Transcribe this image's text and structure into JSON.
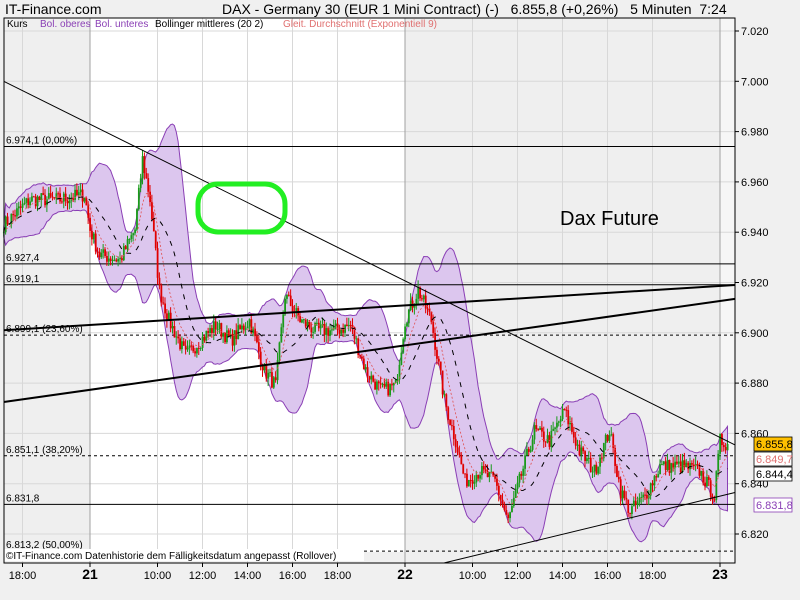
{
  "header": {
    "site": "IT-Finance.com",
    "instrument": "DAX - Germany 30 (EUR 1 Mini Contract) (-)",
    "last": "6.855,8 (+0,26%)",
    "interval": "5 Minuten",
    "time": "7:24"
  },
  "legend": {
    "kurs": "Kurs",
    "upper": "Bol. oberes",
    "lower": "Bol. unteres",
    "middle": "Bollinger mittleres (20 2)",
    "ema": "Gleit. Durchschnitt (Exponentiell 9)"
  },
  "footer": "©IT-Finance.com  Datenhistorie dem Fälligkeitsdatum angepasst (Rollover)",
  "annotation_text": "Dax Future",
  "colors": {
    "up": "#1a9a1a",
    "down": "#e00000",
    "band_fill": "#dcc6ee",
    "band_line": "#8a3fb5",
    "ema": "#e05050",
    "highlight": "#ffc000",
    "annotation": "#22ee22"
  },
  "chart_data": {
    "type": "candlestick",
    "interval": "5 Minuten",
    "ylim": [
      6810,
      7028
    ],
    "yticks": [
      "7.020",
      "7.000",
      "6.980",
      "6.960",
      "6.940",
      "6.920",
      "6.900",
      "6.880",
      "6.860",
      "6.840",
      "6.820"
    ],
    "ytick_values": [
      7020,
      7000,
      6980,
      6960,
      6940,
      6920,
      6900,
      6880,
      6860,
      6840,
      6820
    ],
    "xticks": [
      {
        "label": "18:00",
        "day": 20,
        "time": "18:00",
        "major": false
      },
      {
        "label": "21",
        "day": 21,
        "time": "07:00",
        "major": true
      },
      {
        "label": "10:00",
        "day": 21,
        "time": "10:00",
        "major": false
      },
      {
        "label": "12:00",
        "day": 21,
        "time": "12:00",
        "major": false
      },
      {
        "label": "14:00",
        "day": 21,
        "time": "14:00",
        "major": false
      },
      {
        "label": "16:00",
        "day": 21,
        "time": "16:00",
        "major": false
      },
      {
        "label": "18:00",
        "day": 21,
        "time": "18:00",
        "major": false
      },
      {
        "label": "22",
        "day": 22,
        "time": "07:00",
        "major": true
      },
      {
        "label": "10:00",
        "day": 22,
        "time": "10:00",
        "major": false
      },
      {
        "label": "12:00",
        "day": 22,
        "time": "12:00",
        "major": false
      },
      {
        "label": "14:00",
        "day": 22,
        "time": "14:00",
        "major": false
      },
      {
        "label": "16:00",
        "day": 22,
        "time": "16:00",
        "major": false
      },
      {
        "label": "18:00",
        "day": 22,
        "time": "18:00",
        "major": false
      },
      {
        "label": "23",
        "day": 23,
        "time": "07:00",
        "major": true
      }
    ],
    "close_path": [
      [
        20,
        "17:10",
        6943
      ],
      [
        20,
        "18:20",
        6953
      ],
      [
        20,
        "19:40",
        6953
      ],
      [
        20,
        "20:45",
        6955
      ],
      [
        21,
        "07:00",
        6941
      ],
      [
        21,
        "07:25",
        6931
      ],
      [
        21,
        "08:20",
        6929
      ],
      [
        21,
        "09:00",
        6941
      ],
      [
        21,
        "09:20",
        6969
      ],
      [
        21,
        "09:40",
        6953
      ],
      [
        21,
        "10:05",
        6917
      ],
      [
        21,
        "10:30",
        6905
      ],
      [
        21,
        "11:15",
        6891
      ],
      [
        21,
        "11:55",
        6897
      ],
      [
        21,
        "12:35",
        6903
      ],
      [
        21,
        "13:15",
        6897
      ],
      [
        21,
        "14:05",
        6905
      ],
      [
        21,
        "14:45",
        6885
      ],
      [
        21,
        "15:15",
        6879
      ],
      [
        21,
        "15:40",
        6915
      ],
      [
        21,
        "16:20",
        6905
      ],
      [
        21,
        "17:00",
        6901
      ],
      [
        21,
        "17:55",
        6901
      ],
      [
        21,
        "18:35",
        6903
      ],
      [
        21,
        "19:15",
        6885
      ],
      [
        21,
        "19:55",
        6877
      ],
      [
        21,
        "20:35",
        6879
      ],
      [
        22,
        "07:00",
        6905
      ],
      [
        22,
        "07:35",
        6917
      ],
      [
        22,
        "08:10",
        6905
      ],
      [
        22,
        "08:45",
        6873
      ],
      [
        22,
        "09:15",
        6857
      ],
      [
        22,
        "09:40",
        6841
      ],
      [
        22,
        "10:20",
        6845
      ],
      [
        22,
        "11:00",
        6841
      ],
      [
        22,
        "11:35",
        6825
      ],
      [
        22,
        "12:05",
        6841
      ],
      [
        22,
        "12:45",
        6861
      ],
      [
        22,
        "13:25",
        6857
      ],
      [
        22,
        "14:05",
        6869
      ],
      [
        22,
        "14:45",
        6853
      ],
      [
        22,
        "15:25",
        6845
      ],
      [
        22,
        "16:05",
        6861
      ],
      [
        22,
        "16:35",
        6837
      ],
      [
        22,
        "17:00",
        6829
      ],
      [
        22,
        "17:40",
        6835
      ],
      [
        22,
        "18:20",
        6847
      ],
      [
        22,
        "19:15",
        6847
      ],
      [
        22,
        "20:05",
        6845
      ],
      [
        22,
        "20:45",
        6835
      ],
      [
        23,
        "07:00",
        6857
      ],
      [
        23,
        "07:20",
        6855.8
      ]
    ],
    "levels": [
      {
        "value": 6974.1,
        "label": "6.974,1 (0,00%)",
        "style": "solid"
      },
      {
        "value": 6927.4,
        "label": "6.927,4",
        "style": "solid"
      },
      {
        "value": 6919.1,
        "label": "6.919,1",
        "style": "solid"
      },
      {
        "value": 6899.1,
        "label": "6.899,1 (23,60%)",
        "style": "dashed"
      },
      {
        "value": 6851.1,
        "label": "6.851,1 (38,20%)",
        "style": "dashed"
      },
      {
        "value": 6831.8,
        "label": "6.831,8",
        "style": "solid"
      },
      {
        "value": 6813.2,
        "label": "6.813,2 (50,00%)",
        "style": "dashed"
      }
    ],
    "trendlines": [
      {
        "from": [
          20,
          "17:10",
          7000
        ],
        "to": [
          23,
          "07:40",
          6855.4
        ],
        "weight": "thin"
      },
      {
        "from": [
          20,
          "17:10",
          6901
        ],
        "to": [
          23,
          "07:40",
          6919
        ],
        "weight": "thick"
      },
      {
        "from": [
          20,
          "17:10",
          6872.5
        ],
        "to": [
          23,
          "07:40",
          6913.5
        ],
        "weight": "thick"
      },
      {
        "from": [
          22,
          "08:45",
          6808.5
        ],
        "to": [
          23,
          "07:40",
          6836.5
        ],
        "weight": "thin"
      }
    ],
    "price_tags": [
      {
        "value": 6855.8,
        "label": "6.855,8",
        "kind": "last"
      },
      {
        "value": 6849.7,
        "label": "6.849,7",
        "kind": "ema"
      },
      {
        "value": 6844.4,
        "label": "6.844,4",
        "kind": "middle"
      },
      {
        "value": 6831.8,
        "label": "6.831,8",
        "kind": "lower"
      }
    ],
    "bollinger": {
      "period": 20,
      "stddev": 2
    },
    "ema_period": 9
  }
}
